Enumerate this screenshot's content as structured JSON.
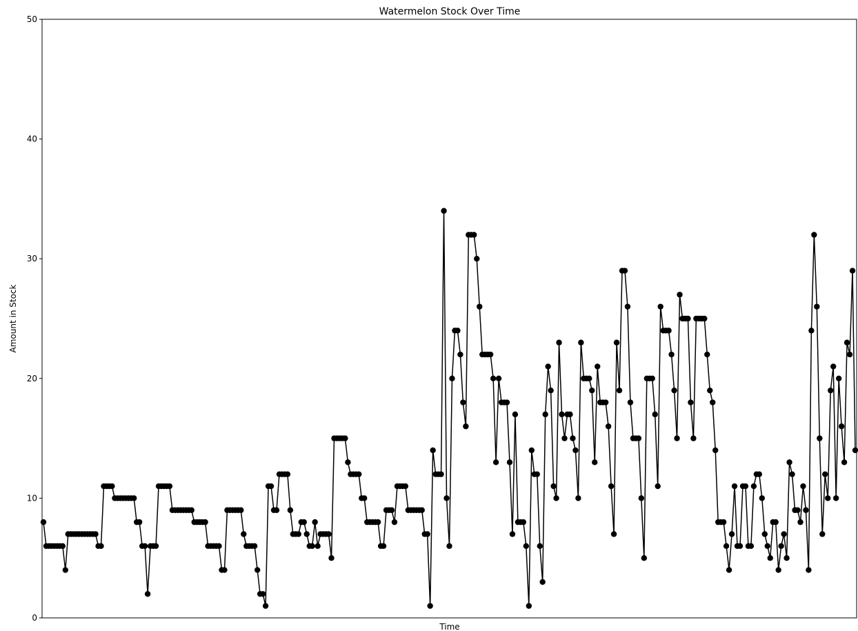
{
  "chart_data": {
    "type": "line",
    "title": "Watermelon Stock Over Time",
    "xlabel": "Time",
    "ylabel": "Amount in Stock",
    "ylim": [
      0,
      50
    ],
    "yticks": [
      "0",
      "10",
      "20",
      "30",
      "40",
      "50"
    ],
    "grid": false,
    "marker": "circle",
    "line_color": "#000000",
    "series": [
      {
        "values": [
          8,
          6,
          6,
          6,
          6,
          6,
          6,
          6,
          4,
          7,
          7,
          7,
          7,
          7,
          7,
          7,
          7,
          7,
          7,
          7,
          6,
          6,
          11,
          11,
          11,
          11,
          10,
          10,
          10,
          10,
          10,
          10,
          10,
          10,
          8,
          8,
          6,
          6,
          2,
          6,
          6,
          6,
          11,
          11,
          11,
          11,
          11,
          9,
          9,
          9,
          9,
          9,
          9,
          9,
          9,
          8,
          8,
          8,
          8,
          8,
          6,
          6,
          6,
          6,
          6,
          4,
          4,
          9,
          9,
          9,
          9,
          9,
          9,
          7,
          6,
          6,
          6,
          6,
          4,
          2,
          2,
          1,
          11,
          11,
          9,
          9,
          12,
          12,
          12,
          12,
          9,
          7,
          7,
          7,
          8,
          8,
          7,
          6,
          6,
          8,
          6,
          7,
          7,
          7,
          7,
          5,
          15,
          15,
          15,
          15,
          15,
          13,
          12,
          12,
          12,
          12,
          10,
          10,
          8,
          8,
          8,
          8,
          8,
          6,
          6,
          9,
          9,
          9,
          8,
          11,
          11,
          11,
          11,
          9,
          9,
          9,
          9,
          9,
          9,
          7,
          7,
          1,
          14,
          12,
          12,
          12,
          34,
          10,
          6,
          20,
          24,
          24,
          22,
          18,
          16,
          32,
          32,
          32,
          30,
          26,
          22,
          22,
          22,
          22,
          20,
          13,
          20,
          18,
          18,
          18,
          13,
          7,
          17,
          8,
          8,
          8,
          6,
          1,
          14,
          12,
          12,
          6,
          3,
          17,
          21,
          19,
          11,
          10,
          23,
          17,
          15,
          17,
          17,
          15,
          14,
          10,
          23,
          20,
          20,
          20,
          19,
          13,
          21,
          18,
          18,
          18,
          16,
          11,
          7,
          23,
          19,
          29,
          29,
          26,
          18,
          15,
          15,
          15,
          10,
          5,
          20,
          20,
          20,
          17,
          11,
          26,
          24,
          24,
          24,
          22,
          19,
          15,
          27,
          25,
          25,
          25,
          18,
          15,
          25,
          25,
          25,
          25,
          22,
          19,
          18,
          14,
          8,
          8,
          8,
          6,
          4,
          7,
          11,
          6,
          6,
          11,
          11,
          6,
          6,
          11,
          12,
          12,
          10,
          7,
          6,
          5,
          8,
          8,
          4,
          6,
          7,
          5,
          13,
          12,
          9,
          9,
          8,
          11,
          9,
          4,
          24,
          32,
          26,
          15,
          7,
          12,
          10,
          19,
          21,
          10,
          20,
          16,
          13,
          23,
          22,
          29,
          14
        ]
      }
    ]
  }
}
